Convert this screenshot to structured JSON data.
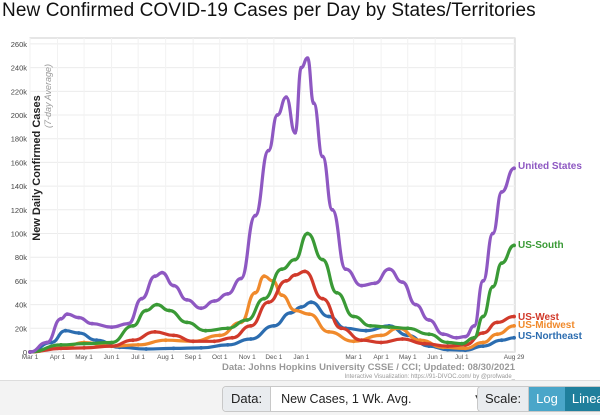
{
  "title": "New Confirmed COVID-19 Cases per Day by States/Territories",
  "controls": {
    "data_label": "Data:",
    "data_value": "New Cases, 1 Wk. Avg.",
    "scale_label": "Scale:",
    "log_label": "Log",
    "linear_label": "Linear"
  },
  "chart_data": {
    "type": "line",
    "ylabel": "New Daily Confirmed Cases",
    "ylabel_sub": "(7-day Average)",
    "y_ticks": [
      "0",
      "20k",
      "40k",
      "60k",
      "80k",
      "100k",
      "120k",
      "140k",
      "160k",
      "180k",
      "200k",
      "220k",
      "240k",
      "260k"
    ],
    "ylim": [
      0,
      265000
    ],
    "x_ticks": [
      "Mar 1",
      "Apr 1",
      "May 1",
      "Jun 1",
      "Jul 1",
      "Aug 1",
      "Sep 1",
      "Oct 1",
      "Nov 1",
      "Dec 1",
      "Jan 1",
      "Mar 1",
      "Apr 1",
      "May 1",
      "Jun 1",
      "Jul 1",
      "Aug 29"
    ],
    "xlim": [
      "2020-03-01",
      "2021-08-30"
    ],
    "source": "Data: Johns Hopkins University CSSE / CCI; Updated: 08/30/2021",
    "credit": "Interactive Visualization: https://91-DIVOC.com/ by @profwade_",
    "colors": {
      "United States": "#8e58c2",
      "US-South": "#3a9a36",
      "US-West": "#d13a2b",
      "US-Midwest": "#f08a2c",
      "US-Northeast": "#2c6db0"
    },
    "series": [
      {
        "name": "United States",
        "x": [
          "2020-03-01",
          "2020-03-20",
          "2020-04-05",
          "2020-04-12",
          "2020-04-25",
          "2020-05-10",
          "2020-06-01",
          "2020-06-20",
          "2020-07-05",
          "2020-07-20",
          "2020-07-28",
          "2020-08-10",
          "2020-08-25",
          "2020-09-10",
          "2020-09-25",
          "2020-10-10",
          "2020-10-25",
          "2020-11-10",
          "2020-11-25",
          "2020-12-05",
          "2020-12-15",
          "2020-12-25",
          "2021-01-01",
          "2021-01-08",
          "2021-01-15",
          "2021-01-25",
          "2021-02-05",
          "2021-02-20",
          "2021-03-10",
          "2021-03-25",
          "2021-04-10",
          "2021-04-25",
          "2021-05-10",
          "2021-05-25",
          "2021-06-10",
          "2021-06-25",
          "2021-07-05",
          "2021-07-15",
          "2021-07-25",
          "2021-08-05",
          "2021-08-15",
          "2021-08-29"
        ],
        "values": [
          0,
          8000,
          28000,
          32000,
          29000,
          24000,
          21000,
          24000,
          45000,
          64000,
          67000,
          56000,
          44000,
          37000,
          43000,
          49000,
          62000,
          115000,
          170000,
          200000,
          215000,
          185000,
          240000,
          248000,
          210000,
          165000,
          120000,
          70000,
          56000,
          58000,
          70000,
          59000,
          40000,
          27000,
          15000,
          12000,
          13000,
          22000,
          60000,
          100000,
          135000,
          155000
        ]
      },
      {
        "name": "US-South",
        "x": [
          "2020-03-01",
          "2020-04-05",
          "2020-05-01",
          "2020-06-01",
          "2020-06-25",
          "2020-07-10",
          "2020-07-22",
          "2020-08-05",
          "2020-08-25",
          "2020-09-15",
          "2020-10-10",
          "2020-11-01",
          "2020-11-20",
          "2020-12-10",
          "2020-12-25",
          "2021-01-08",
          "2021-01-25",
          "2021-02-10",
          "2021-03-01",
          "2021-03-20",
          "2021-04-10",
          "2021-05-01",
          "2021-05-25",
          "2021-06-15",
          "2021-07-01",
          "2021-07-15",
          "2021-07-25",
          "2021-08-05",
          "2021-08-15",
          "2021-08-29"
        ],
        "values": [
          0,
          6000,
          7000,
          8000,
          22000,
          35000,
          40000,
          35000,
          25000,
          18000,
          20000,
          27000,
          45000,
          70000,
          78000,
          100000,
          78000,
          50000,
          30000,
          22000,
          21000,
          20000,
          15000,
          8000,
          7000,
          12000,
          30000,
          55000,
          75000,
          90000
        ]
      },
      {
        "name": "US-West",
        "x": [
          "2020-03-01",
          "2020-04-05",
          "2020-05-01",
          "2020-06-01",
          "2020-06-25",
          "2020-07-20",
          "2020-08-10",
          "2020-09-01",
          "2020-09-25",
          "2020-10-15",
          "2020-11-05",
          "2020-11-25",
          "2020-12-15",
          "2020-12-25",
          "2021-01-05",
          "2021-01-25",
          "2021-02-15",
          "2021-03-10",
          "2021-04-01",
          "2021-04-25",
          "2021-05-20",
          "2021-06-15",
          "2021-07-05",
          "2021-07-25",
          "2021-08-10",
          "2021-08-29"
        ],
        "values": [
          0,
          3000,
          3500,
          5000,
          10000,
          17000,
          14000,
          9000,
          9000,
          12000,
          22000,
          42000,
          60000,
          65000,
          68000,
          45000,
          20000,
          10000,
          8000,
          11000,
          7000,
          5000,
          6000,
          16000,
          25000,
          30000
        ]
      },
      {
        "name": "US-Midwest",
        "x": [
          "2020-03-01",
          "2020-04-10",
          "2020-05-01",
          "2020-06-01",
          "2020-07-01",
          "2020-08-01",
          "2020-09-01",
          "2020-10-01",
          "2020-10-25",
          "2020-11-10",
          "2020-11-20",
          "2020-11-30",
          "2020-12-10",
          "2020-12-25",
          "2021-01-10",
          "2021-02-01",
          "2021-03-01",
          "2021-04-01",
          "2021-04-20",
          "2021-05-15",
          "2021-06-10",
          "2021-07-05",
          "2021-07-25",
          "2021-08-10",
          "2021-08-29"
        ],
        "values": [
          0,
          5000,
          8000,
          5000,
          6000,
          10000,
          9000,
          14000,
          25000,
          50000,
          64000,
          60000,
          48000,
          35000,
          32000,
          17000,
          9000,
          14000,
          20000,
          10000,
          4000,
          3000,
          8000,
          15000,
          22000
        ]
      },
      {
        "name": "US-Northeast",
        "x": [
          "2020-03-01",
          "2020-03-25",
          "2020-04-10",
          "2020-04-25",
          "2020-05-15",
          "2020-06-10",
          "2020-07-10",
          "2020-08-10",
          "2020-09-10",
          "2020-10-10",
          "2020-11-05",
          "2020-12-01",
          "2020-12-20",
          "2021-01-01",
          "2021-01-12",
          "2021-02-01",
          "2021-02-20",
          "2021-03-15",
          "2021-04-10",
          "2021-05-01",
          "2021-05-25",
          "2021-06-15",
          "2021-07-05",
          "2021-07-25",
          "2021-08-15",
          "2021-08-29"
        ],
        "values": [
          0,
          8000,
          18000,
          16000,
          10000,
          4000,
          2500,
          3000,
          3500,
          6000,
          11000,
          22000,
          33000,
          38000,
          42000,
          30000,
          20000,
          18000,
          22000,
          14000,
          5000,
          2000,
          1500,
          5000,
          10000,
          12000
        ]
      }
    ]
  }
}
